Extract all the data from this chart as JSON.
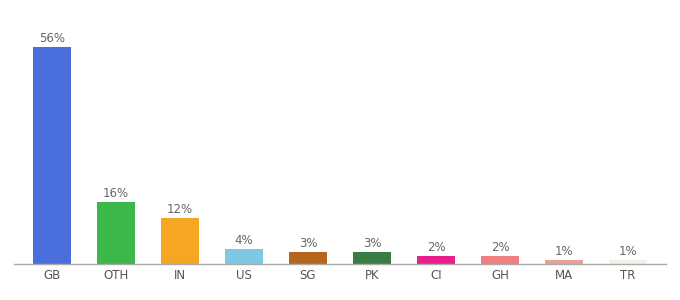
{
  "categories": [
    "GB",
    "OTH",
    "IN",
    "US",
    "SG",
    "PK",
    "CI",
    "GH",
    "MA",
    "TR"
  ],
  "values": [
    56,
    16,
    12,
    4,
    3,
    3,
    2,
    2,
    1,
    1
  ],
  "labels": [
    "56%",
    "16%",
    "12%",
    "4%",
    "3%",
    "3%",
    "2%",
    "2%",
    "1%",
    "1%"
  ],
  "bar_colors": [
    "#4a6fdc",
    "#3cb84a",
    "#f5a623",
    "#7ec8e3",
    "#b5651d",
    "#3a7d44",
    "#e91e8c",
    "#f08080",
    "#e8a09a",
    "#f5f0e8"
  ],
  "ylim": [
    0,
    62
  ],
  "background_color": "#ffffff",
  "label_fontsize": 8.5,
  "tick_fontsize": 8.5,
  "bar_width": 0.6
}
